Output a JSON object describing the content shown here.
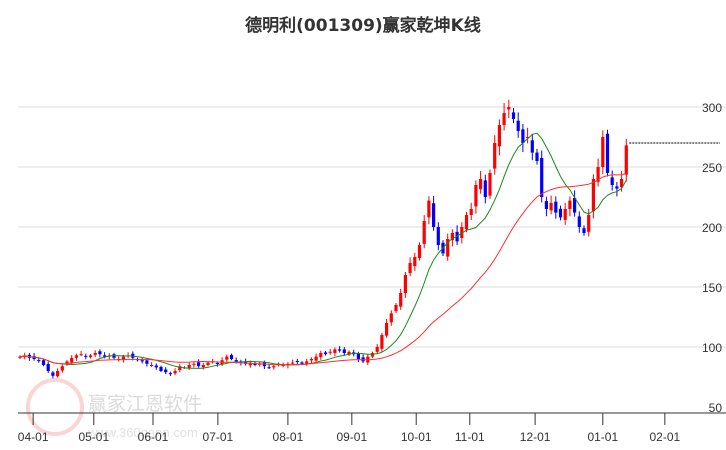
{
  "chart_data": {
    "type": "candlestick",
    "title": "德明利(001309)赢家乾坤K线",
    "xlabel": "",
    "ylabel": "",
    "ylim": [
      50,
      310
    ],
    "y_ticks": [
      300,
      250,
      200,
      150,
      100,
      50
    ],
    "grid": true,
    "x_ticks": [
      {
        "label": "04-01",
        "index": 2.8
      },
      {
        "label": "05-01",
        "index": 15.7
      },
      {
        "label": "06-01",
        "index": 28.3
      },
      {
        "label": "07-01",
        "index": 42.1
      },
      {
        "label": "08-01",
        "index": 57.0
      },
      {
        "label": "09-01",
        "index": 70.6
      },
      {
        "label": "10-01",
        "index": 84.3
      },
      {
        "label": "11-01",
        "index": 95.7
      },
      {
        "label": "12-01",
        "index": 109.6
      },
      {
        "label": "01-01",
        "index": 124.0
      },
      {
        "label": "02-01",
        "index": 137.2
      }
    ],
    "closes": [
      92,
      93,
      91,
      90,
      89,
      85,
      80,
      76,
      80,
      84,
      88,
      91,
      93,
      94,
      92,
      93,
      95,
      94,
      92,
      93,
      91,
      90,
      92,
      93,
      91,
      89,
      88,
      86,
      85,
      83,
      80,
      79,
      78,
      80,
      84,
      83,
      85,
      86,
      84,
      85,
      87,
      88,
      86,
      89,
      92,
      90,
      88,
      87,
      86,
      87,
      85,
      86,
      84,
      83,
      84,
      86,
      85,
      86,
      87,
      88,
      86,
      88,
      90,
      92,
      95,
      94,
      96,
      98,
      97,
      95,
      96,
      94,
      90,
      88,
      92,
      95,
      100,
      110,
      120,
      128,
      135,
      145,
      160,
      170,
      175,
      185,
      205,
      222,
      200,
      185,
      178,
      190,
      195,
      188,
      200,
      210,
      215,
      235,
      240,
      225,
      245,
      270,
      285,
      295,
      300,
      290,
      280,
      270,
      275,
      262,
      255,
      225,
      215,
      220,
      212,
      208,
      215,
      222,
      212,
      200,
      195,
      210,
      240,
      250,
      275,
      245,
      235,
      232,
      240,
      268
    ],
    "series": [
      {
        "name": "short-ma",
        "period": 10,
        "color": "#1a8a1a"
      },
      {
        "name": "long-ma",
        "period": 30,
        "color": "#ff3030"
      }
    ],
    "reference_line": 270,
    "colors": {
      "up": "#ff0000",
      "down": "#0000ff",
      "grid": "#dddddd",
      "axis": "#333333"
    }
  },
  "watermark": {
    "brand": "赢家江恩软件",
    "url": "www.360gann.com",
    "seal": "江赢恩家"
  }
}
